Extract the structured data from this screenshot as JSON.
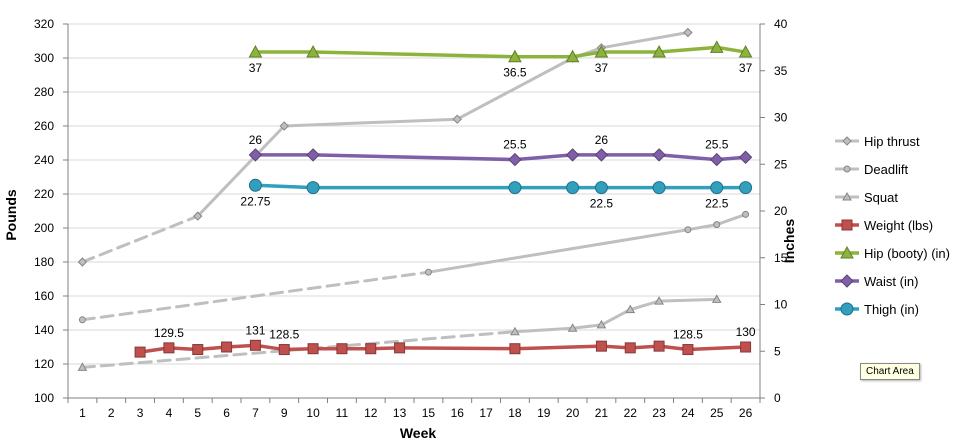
{
  "chart_data": {
    "type": "line",
    "xlabel": "Week",
    "ylabel": "Pounds",
    "y2label": "Inches",
    "ylim": [
      100,
      320
    ],
    "y2lim": [
      0,
      40
    ],
    "yticks": [
      100,
      120,
      140,
      160,
      180,
      200,
      220,
      240,
      260,
      280,
      300,
      320
    ],
    "y2ticks": [
      0,
      5,
      10,
      15,
      20,
      25,
      30,
      35,
      40
    ],
    "categories": [
      "1",
      "2",
      "3",
      "4",
      "5",
      "6",
      "7",
      "9",
      "10",
      "11",
      "12",
      "13",
      "15",
      "16",
      "17",
      "18",
      "19",
      "20",
      "21",
      "22",
      "23",
      "24",
      "25",
      "26"
    ],
    "grid": true,
    "legend_position": "right",
    "series": [
      {
        "name": "Hip thrust",
        "axis": "left",
        "color": "#bfbfbf",
        "marker": "diamond",
        "points": [
          [
            "1",
            180
          ],
          [
            "5",
            207
          ],
          [
            "9",
            260
          ],
          [
            "16",
            264
          ],
          [
            "20",
            300
          ],
          [
            "21",
            306
          ],
          [
            "24",
            315
          ]
        ],
        "dashed_segments": [
          [
            0,
            1
          ]
        ]
      },
      {
        "name": "Deadlift",
        "axis": "left",
        "color": "#bfbfbf",
        "marker": "circle",
        "points": [
          [
            "1",
            146
          ],
          [
            "15",
            174
          ],
          [
            "24",
            199
          ],
          [
            "25",
            202
          ],
          [
            "26",
            208
          ]
        ],
        "dashed_segments": [
          [
            0,
            1
          ]
        ]
      },
      {
        "name": "Squat",
        "axis": "left",
        "color": "#bfbfbf",
        "marker": "triangle",
        "points": [
          [
            "1",
            118
          ],
          [
            "18",
            139
          ],
          [
            "20",
            141
          ],
          [
            "21",
            143
          ],
          [
            "22",
            152
          ],
          [
            "23",
            157
          ],
          [
            "25",
            158
          ]
        ],
        "dashed_segments": [
          [
            0,
            1
          ]
        ]
      },
      {
        "name": "Weight (lbs)",
        "axis": "left",
        "color": "#c0504d",
        "marker": "square",
        "points": [
          [
            "3",
            127
          ],
          [
            "4",
            129.5
          ],
          [
            "5",
            128.5
          ],
          [
            "6",
            130
          ],
          [
            "7",
            131
          ],
          [
            "9",
            128.5
          ],
          [
            "10",
            129
          ],
          [
            "11",
            129
          ],
          [
            "12",
            129
          ],
          [
            "13",
            129.5
          ],
          [
            "18",
            129
          ],
          [
            "21",
            130.5
          ],
          [
            "22",
            129.5
          ],
          [
            "23",
            130.5
          ],
          [
            "24",
            128.5
          ],
          [
            "26",
            130
          ]
        ],
        "dashed_segments": []
      },
      {
        "name": "Hip (booty) (in)",
        "axis": "right",
        "color": "#8cb43c",
        "marker": "triangle",
        "points": [
          [
            "7",
            37
          ],
          [
            "10",
            37
          ],
          [
            "18",
            36.5
          ],
          [
            "20",
            36.5
          ],
          [
            "21",
            37
          ],
          [
            "23",
            37
          ],
          [
            "25",
            37.5
          ],
          [
            "26",
            37
          ]
        ],
        "dashed_segments": []
      },
      {
        "name": "Waist (in)",
        "axis": "right",
        "color": "#7f5fa8",
        "marker": "diamond",
        "points": [
          [
            "7",
            26
          ],
          [
            "10",
            26
          ],
          [
            "18",
            25.5
          ],
          [
            "20",
            26
          ],
          [
            "21",
            26
          ],
          [
            "23",
            26
          ],
          [
            "25",
            25.5
          ],
          [
            "26",
            25.75
          ]
        ],
        "dashed_segments": []
      },
      {
        "name": "Thigh (in)",
        "axis": "right",
        "color": "#31a0bf",
        "marker": "circle",
        "points": [
          [
            "7",
            22.75
          ],
          [
            "10",
            22.5
          ],
          [
            "18",
            22.5
          ],
          [
            "20",
            22.5
          ],
          [
            "21",
            22.5
          ],
          [
            "23",
            22.5
          ],
          [
            "25",
            22.5
          ],
          [
            "26",
            22.5
          ]
        ],
        "dashed_segments": []
      }
    ],
    "data_labels": [
      {
        "series": "Weight (lbs)",
        "x": "4",
        "text": "129.5",
        "pos": "above"
      },
      {
        "series": "Weight (lbs)",
        "x": "7",
        "text": "131",
        "pos": "above"
      },
      {
        "series": "Weight (lbs)",
        "x": "9",
        "text": "128.5",
        "pos": "above"
      },
      {
        "series": "Weight (lbs)",
        "x": "24",
        "text": "128.5",
        "pos": "above"
      },
      {
        "series": "Weight (lbs)",
        "x": "26",
        "text": "130",
        "pos": "above"
      },
      {
        "series": "Hip (booty) (in)",
        "x": "7",
        "text": "37",
        "pos": "below"
      },
      {
        "series": "Hip (booty) (in)",
        "x": "18",
        "text": "36.5",
        "pos": "below"
      },
      {
        "series": "Hip (booty) (in)",
        "x": "21",
        "text": "37",
        "pos": "below"
      },
      {
        "series": "Hip (booty) (in)",
        "x": "26",
        "text": "37",
        "pos": "below"
      },
      {
        "series": "Waist (in)",
        "x": "7",
        "text": "26",
        "pos": "above"
      },
      {
        "series": "Waist (in)",
        "x": "18",
        "text": "25.5",
        "pos": "above"
      },
      {
        "series": "Waist (in)",
        "x": "21",
        "text": "26",
        "pos": "above"
      },
      {
        "series": "Waist (in)",
        "x": "25",
        "text": "25.5",
        "pos": "above"
      },
      {
        "series": "Thigh (in)",
        "x": "7",
        "text": "22.75",
        "pos": "below"
      },
      {
        "series": "Thigh (in)",
        "x": "21",
        "text": "22.5",
        "pos": "below"
      },
      {
        "series": "Thigh (in)",
        "x": "25",
        "text": "22.5",
        "pos": "below"
      }
    ]
  },
  "tooltip": "Chart Area"
}
